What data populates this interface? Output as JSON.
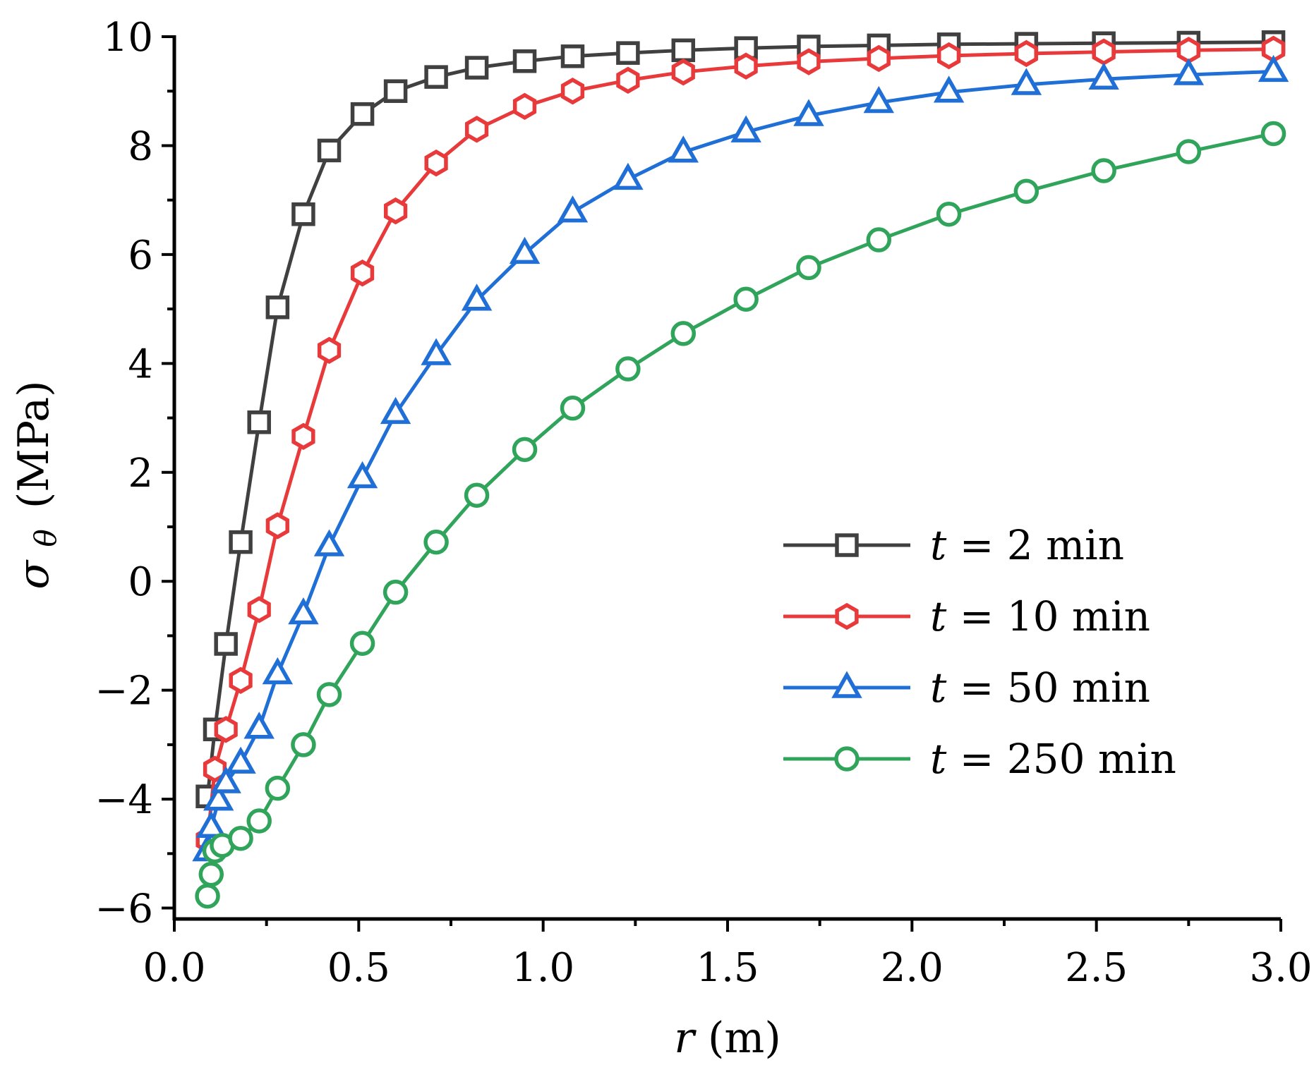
{
  "chart_data": {
    "type": "line",
    "title": "",
    "xlabel": {
      "symbol": "r",
      "unit": "(m)"
    },
    "ylabel": {
      "symbol": "σ",
      "subscript": "θ",
      "unit": "(MPa)"
    },
    "xlim": [
      0.0,
      3.0
    ],
    "ylim": [
      -6.2,
      10.0
    ],
    "xticks": [
      {
        "value": 0.0,
        "label": "0.0"
      },
      {
        "value": 0.5,
        "label": "0.5"
      },
      {
        "value": 1.0,
        "label": "1.0"
      },
      {
        "value": 1.5,
        "label": "1.5"
      },
      {
        "value": 2.0,
        "label": "2.0"
      },
      {
        "value": 2.5,
        "label": "2.5"
      },
      {
        "value": 3.0,
        "label": "3.0"
      }
    ],
    "yticks": [
      {
        "value": -6,
        "label": "−6"
      },
      {
        "value": -4,
        "label": "−4"
      },
      {
        "value": -2,
        "label": "−2"
      },
      {
        "value": 0,
        "label": "0"
      },
      {
        "value": 2,
        "label": "2"
      },
      {
        "value": 4,
        "label": "4"
      },
      {
        "value": 6,
        "label": "6"
      },
      {
        "value": 8,
        "label": "8"
      },
      {
        "value": 10,
        "label": "10"
      }
    ],
    "grid": false,
    "legend_position": "center-right",
    "series": [
      {
        "name": "t = 2 min",
        "legend": {
          "var": "t",
          "rest": " = 2 min"
        },
        "color": "#404040",
        "marker": "square",
        "x": [
          0.09,
          0.11,
          0.14,
          0.18,
          0.23,
          0.28,
          0.35,
          0.42,
          0.51,
          0.6,
          0.71,
          0.82,
          0.95,
          1.08,
          1.23,
          1.38,
          1.55,
          1.72,
          1.91,
          2.1,
          2.31,
          2.52,
          2.75,
          2.98
        ],
        "y": [
          -3.95,
          -2.72,
          -1.15,
          0.72,
          2.92,
          5.03,
          6.74,
          7.91,
          8.58,
          9.0,
          9.26,
          9.43,
          9.55,
          9.64,
          9.7,
          9.75,
          9.79,
          9.82,
          9.84,
          9.86,
          9.87,
          9.88,
          9.89,
          9.9
        ]
      },
      {
        "name": "t = 10 min",
        "legend": {
          "var": "t",
          "rest": " = 10 min"
        },
        "color": "#e8393b",
        "marker": "hexagon",
        "x": [
          0.09,
          0.11,
          0.14,
          0.18,
          0.23,
          0.28,
          0.35,
          0.42,
          0.51,
          0.6,
          0.71,
          0.82,
          0.95,
          1.08,
          1.23,
          1.38,
          1.55,
          1.72,
          1.91,
          2.1,
          2.31,
          2.52,
          2.75,
          2.98
        ],
        "y": [
          -4.75,
          -3.45,
          -2.72,
          -1.82,
          -0.52,
          1.02,
          2.66,
          4.24,
          5.66,
          6.8,
          7.68,
          8.3,
          8.72,
          9.0,
          9.2,
          9.35,
          9.46,
          9.54,
          9.6,
          9.65,
          9.69,
          9.72,
          9.75,
          9.77
        ]
      },
      {
        "name": "t = 50 min",
        "legend": {
          "var": "t",
          "rest": " = 50 min"
        },
        "color": "#1f6fd6",
        "marker": "triangle",
        "x": [
          0.09,
          0.1,
          0.12,
          0.14,
          0.18,
          0.23,
          0.28,
          0.35,
          0.42,
          0.51,
          0.6,
          0.71,
          0.82,
          0.95,
          1.08,
          1.23,
          1.38,
          1.55,
          1.72,
          1.91,
          2.1,
          2.31,
          2.52,
          2.75,
          2.98
        ],
        "y": [
          -4.95,
          -4.52,
          -4.02,
          -3.7,
          -3.34,
          -2.7,
          -1.7,
          -0.6,
          0.65,
          1.9,
          3.08,
          4.16,
          5.16,
          6.02,
          6.78,
          7.38,
          7.88,
          8.25,
          8.55,
          8.79,
          8.98,
          9.12,
          9.22,
          9.3,
          9.36
        ]
      },
      {
        "name": "t = 250 min",
        "legend": {
          "var": "t",
          "rest": " = 250 min"
        },
        "color": "#2fa45a",
        "marker": "circle",
        "x": [
          0.09,
          0.1,
          0.11,
          0.13,
          0.18,
          0.23,
          0.28,
          0.35,
          0.42,
          0.51,
          0.6,
          0.71,
          0.82,
          0.95,
          1.08,
          1.23,
          1.38,
          1.55,
          1.72,
          1.91,
          2.1,
          2.31,
          2.52,
          2.75,
          2.98
        ],
        "y": [
          -5.78,
          -5.38,
          -4.95,
          -4.85,
          -4.72,
          -4.4,
          -3.8,
          -3.0,
          -2.08,
          -1.14,
          -0.2,
          0.72,
          1.58,
          2.42,
          3.18,
          3.9,
          4.55,
          5.18,
          5.76,
          6.27,
          6.74,
          7.16,
          7.54,
          7.89,
          8.22
        ]
      }
    ]
  }
}
